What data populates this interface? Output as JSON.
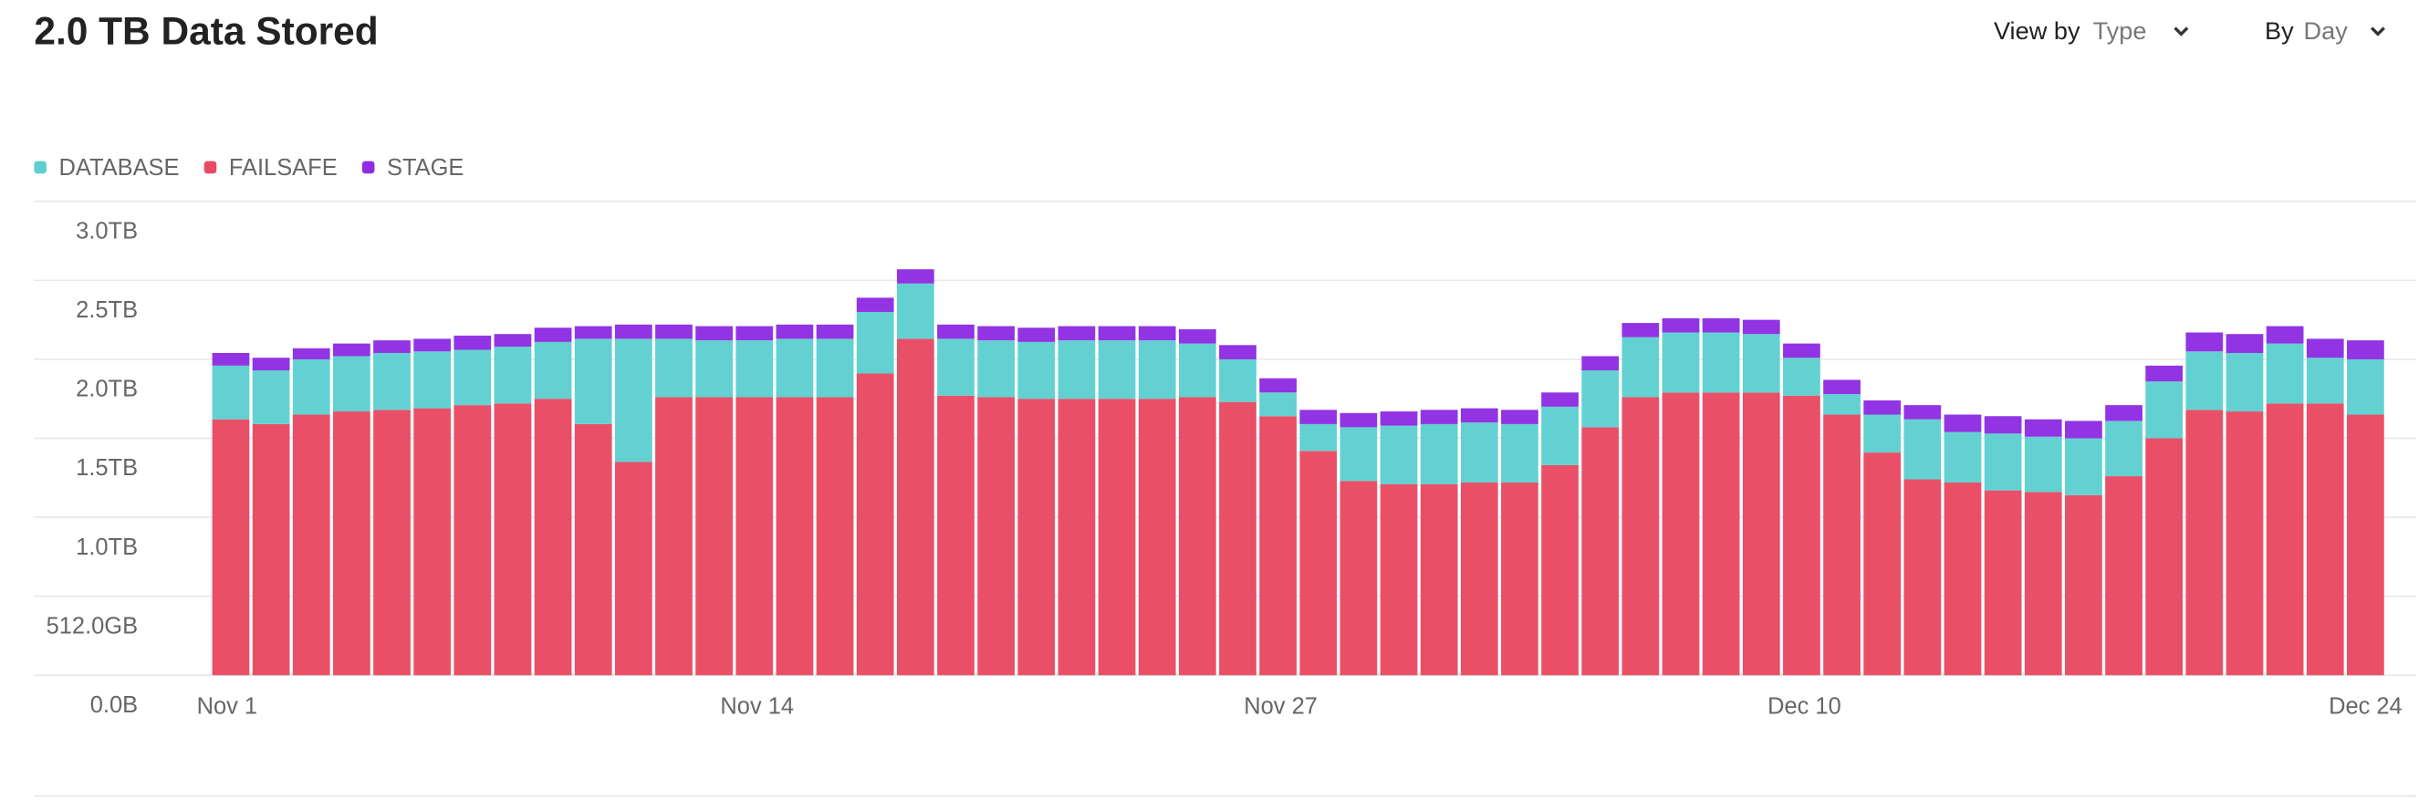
{
  "header": {
    "title": "2.0 TB Data Stored"
  },
  "controls": {
    "view_by": {
      "label": "View by",
      "value": "Type"
    },
    "group_by": {
      "label": "By",
      "value": "Day"
    }
  },
  "chart_data": {
    "type": "stacked_bar",
    "categories": [
      "Nov 1",
      null,
      null,
      null,
      null,
      null,
      null,
      null,
      null,
      null,
      null,
      null,
      null,
      "Nov 14",
      null,
      null,
      null,
      null,
      null,
      null,
      null,
      null,
      null,
      null,
      null,
      null,
      "Nov 27",
      null,
      null,
      null,
      null,
      null,
      null,
      null,
      null,
      null,
      null,
      null,
      null,
      "Dec 10",
      null,
      null,
      null,
      null,
      null,
      null,
      null,
      null,
      null,
      null,
      null,
      null,
      null,
      "Dec 24"
    ],
    "series": [
      {
        "name": "DATABASE",
        "color": "#5ecfcf",
        "values": [
          0.34,
          0.34,
          0.35,
          0.35,
          0.36,
          0.36,
          0.35,
          0.36,
          0.36,
          0.54,
          0.78,
          0.37,
          0.36,
          0.36,
          0.37,
          0.37,
          0.39,
          0.35,
          0.36,
          0.36,
          0.36,
          0.37,
          0.37,
          0.37,
          0.34,
          0.27,
          0.15,
          0.17,
          0.34,
          0.37,
          0.38,
          0.38,
          0.37,
          0.37,
          0.36,
          0.38,
          0.38,
          0.38,
          0.37,
          0.24,
          0.13,
          0.24,
          0.38,
          0.32,
          0.36,
          0.35,
          0.36,
          0.35,
          0.36,
          0.37,
          0.37,
          0.38,
          0.29,
          0.35
        ]
      },
      {
        "name": "FAILSAFE",
        "color": "#e84a63",
        "values": [
          1.62,
          1.59,
          1.65,
          1.67,
          1.68,
          1.69,
          1.71,
          1.72,
          1.75,
          1.59,
          1.35,
          1.76,
          1.76,
          1.76,
          1.76,
          1.76,
          1.91,
          2.13,
          1.77,
          1.76,
          1.75,
          1.75,
          1.75,
          1.75,
          1.76,
          1.73,
          1.64,
          1.42,
          1.23,
          1.21,
          1.21,
          1.22,
          1.22,
          1.33,
          1.57,
          1.76,
          1.79,
          1.79,
          1.79,
          1.77,
          1.65,
          1.41,
          1.24,
          1.22,
          1.17,
          1.16,
          1.14,
          1.26,
          1.5,
          1.68,
          1.67,
          1.72,
          1.72,
          1.65
        ]
      },
      {
        "name": "STAGE",
        "color": "#8e2de2",
        "values": [
          0.08,
          0.08,
          0.07,
          0.08,
          0.08,
          0.08,
          0.09,
          0.08,
          0.09,
          0.08,
          0.09,
          0.09,
          0.09,
          0.09,
          0.09,
          0.09,
          0.09,
          0.09,
          0.09,
          0.09,
          0.09,
          0.09,
          0.09,
          0.09,
          0.09,
          0.09,
          0.09,
          0.09,
          0.09,
          0.09,
          0.09,
          0.09,
          0.09,
          0.09,
          0.09,
          0.09,
          0.09,
          0.09,
          0.09,
          0.09,
          0.09,
          0.09,
          0.09,
          0.11,
          0.11,
          0.11,
          0.11,
          0.1,
          0.1,
          0.12,
          0.12,
          0.11,
          0.12,
          0.12
        ]
      }
    ],
    "ylim": [
      0,
      3
    ],
    "yticks": [
      {
        "value": 0,
        "label": "0.0B"
      },
      {
        "value": 0.5,
        "label": "512.0GB"
      },
      {
        "value": 1,
        "label": "1.0TB"
      },
      {
        "value": 1.5,
        "label": "1.5TB"
      },
      {
        "value": 2,
        "label": "2.0TB"
      },
      {
        "value": 2.5,
        "label": "2.5TB"
      },
      {
        "value": 3,
        "label": "3.0TB"
      }
    ],
    "grid": true
  }
}
